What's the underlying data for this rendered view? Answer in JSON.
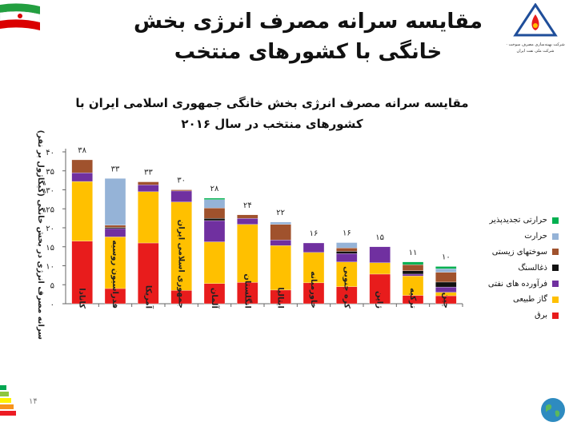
{
  "slide": {
    "title": "مقایسه سرانه مصرف انرژی بخش خانگی با کشورهای منتخب",
    "logo_text": "شرکت بهینه‌سازی مصرف سوخت · شرکت ملی نفت ایران",
    "page_number": "۱۴",
    "flag_colors": [
      "#239f40",
      "#ffffff",
      "#da0000"
    ]
  },
  "chart_data": {
    "type": "bar",
    "stacked": true,
    "title": "مقایسه سرانه مصرف انرژی بخش خانگی جمهوری اسلامی ایران با کشورهای منتخب در سال ۲۰۱۶",
    "xlabel": "",
    "ylabel": "سرانه مصرف انرژی در بخش خانگی (گیگاژول بر نفر)",
    "ylim": [
      0,
      40
    ],
    "yticks": [
      "۰",
      "۵",
      "۱۰",
      "۱۵",
      "۲۰",
      "۲۵",
      "۳۰",
      "۳۵",
      "۴۰"
    ],
    "grid": false,
    "legend_position": "right",
    "categories": [
      "کانادا",
      "فدراسیون روسیه",
      "آمریکا",
      "جمهوری اسلامی ایران",
      "آلمان",
      "انگلستان",
      "ایتالیا",
      "خاورمیانه",
      "کره جنوبی",
      "ژاپن",
      "ترکیه",
      "چین"
    ],
    "totals_labels": [
      "۳۸",
      "۳۳",
      "۳۳",
      "۳۰",
      "۲۸",
      "۲۴",
      "۲۲",
      "۱۶",
      "۱۶",
      "۱۵",
      "۱۱",
      "۱۰"
    ],
    "series": [
      {
        "name": "برق",
        "color": "#e81c1c",
        "values": [
          16.5,
          4.0,
          16.0,
          3.5,
          5.3,
          5.6,
          3.6,
          5.5,
          4.5,
          7.8,
          2.2,
          2.1
        ]
      },
      {
        "name": "گاز طبیعی",
        "color": "#ffc000",
        "values": [
          15.7,
          13.6,
          13.5,
          23.3,
          11.0,
          15.3,
          11.7,
          8.0,
          6.5,
          3.0,
          5.1,
          0.9
        ]
      },
      {
        "name": "فرآورده های نفتی",
        "color": "#7030a0",
        "values": [
          2.3,
          2.2,
          1.8,
          2.9,
          5.6,
          1.6,
          1.5,
          2.5,
          2.2,
          4.2,
          0.5,
          1.4
        ]
      },
      {
        "name": "ذغالسنگ",
        "color": "#111111",
        "values": [
          0.0,
          0.3,
          0.0,
          0.0,
          0.6,
          0.0,
          0.0,
          0.0,
          0.6,
          0.0,
          0.9,
          1.3
        ]
      },
      {
        "name": "سوختهای زیستی",
        "color": "#a0522d",
        "values": [
          3.4,
          0.6,
          0.8,
          0.3,
          2.7,
          0.9,
          4.1,
          0.0,
          0.9,
          0.0,
          1.6,
          2.6
        ]
      },
      {
        "name": "حرارت",
        "color": "#95b3d7",
        "values": [
          0.0,
          12.3,
          0.0,
          0.0,
          2.2,
          0.0,
          0.6,
          0.0,
          1.4,
          0.0,
          0.0,
          0.9
        ]
      },
      {
        "name": "حرارتی تجدیدپذیر",
        "color": "#00b050",
        "values": [
          0.0,
          0.0,
          0.0,
          0.0,
          0.4,
          0.0,
          0.0,
          0.0,
          0.0,
          0.0,
          0.7,
          0.6
        ]
      }
    ]
  }
}
